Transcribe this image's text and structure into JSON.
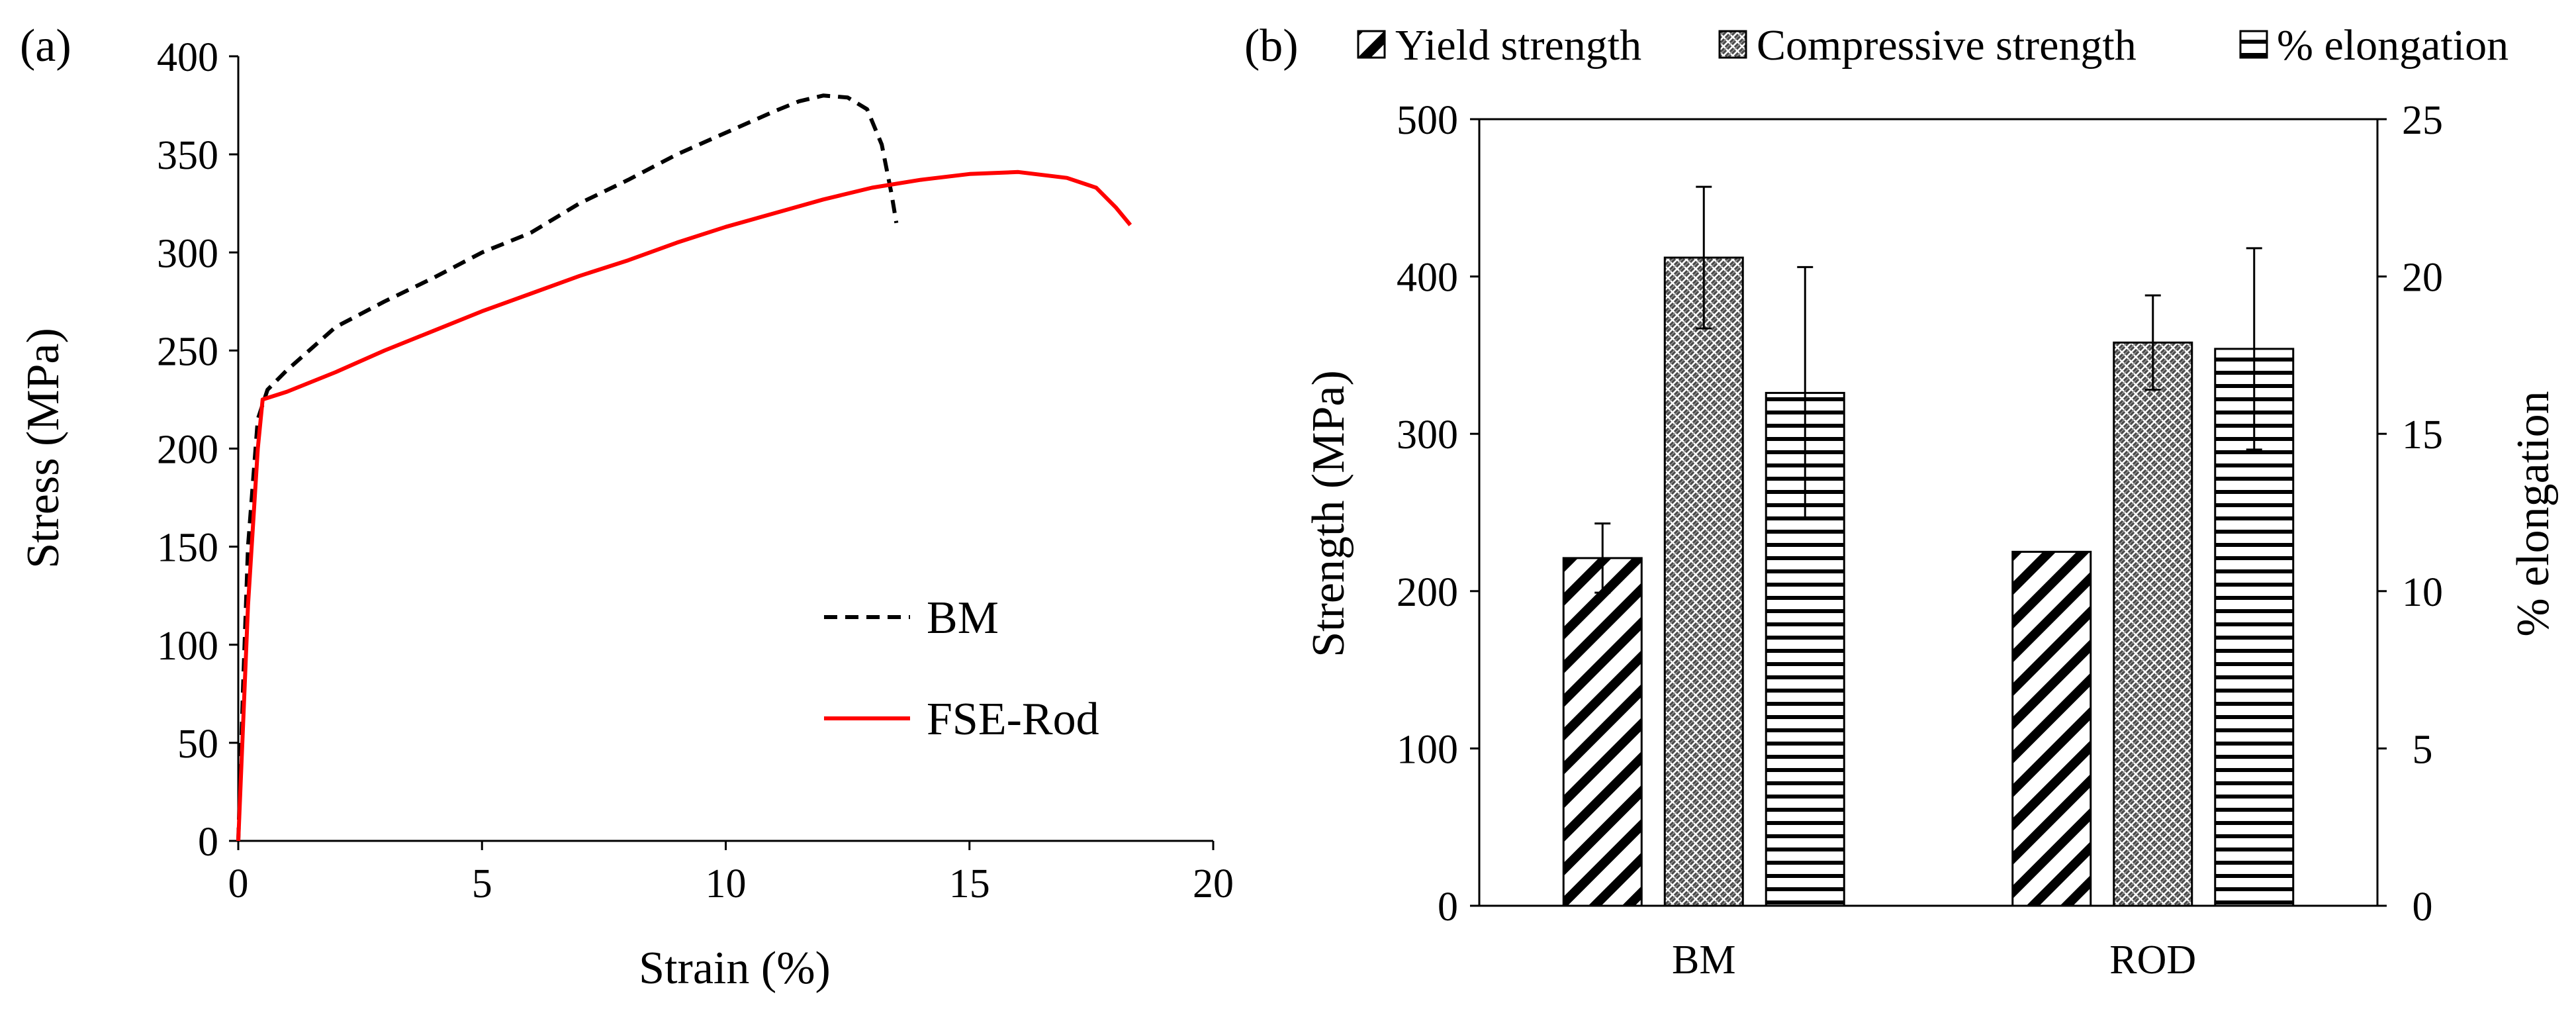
{
  "chart_data": [
    {
      "type": "line",
      "panel_label": "(a)",
      "xlabel": "Strain (%)",
      "ylabel": "Stress (MPa)",
      "xlim": [
        0,
        20
      ],
      "ylim": [
        0,
        400
      ],
      "xticks": [
        0,
        5,
        10,
        15,
        20
      ],
      "yticks": [
        0,
        50,
        100,
        150,
        200,
        250,
        300,
        350,
        400
      ],
      "grid": false,
      "legend_position": "lower-right",
      "series": [
        {
          "name": "BM",
          "color": "#000000",
          "dash": true,
          "points": [
            [
              0,
              0
            ],
            [
              0.1,
              80
            ],
            [
              0.2,
              150
            ],
            [
              0.4,
              215
            ],
            [
              0.6,
              230
            ],
            [
              1,
              240
            ],
            [
              2,
              262
            ],
            [
              3,
              275
            ],
            [
              4,
              287
            ],
            [
              5,
              300
            ],
            [
              6,
              310
            ],
            [
              7,
              325
            ],
            [
              8,
              337
            ],
            [
              9,
              350
            ],
            [
              10,
              361
            ],
            [
              11,
              372
            ],
            [
              11.5,
              377
            ],
            [
              12,
              380
            ],
            [
              12.5,
              379
            ],
            [
              12.9,
              373
            ],
            [
              13.2,
              355
            ],
            [
              13.4,
              330
            ],
            [
              13.5,
              315
            ]
          ]
        },
        {
          "name": "FSE-Rod",
          "color": "#ff0000",
          "dash": false,
          "points": [
            [
              0,
              0
            ],
            [
              0.2,
              120
            ],
            [
              0.4,
              200
            ],
            [
              0.5,
              225
            ],
            [
              1,
              229
            ],
            [
              2,
              239
            ],
            [
              3,
              250
            ],
            [
              4,
              260
            ],
            [
              5,
              270
            ],
            [
              6,
              279
            ],
            [
              7,
              288
            ],
            [
              8,
              296
            ],
            [
              9,
              305
            ],
            [
              10,
              313
            ],
            [
              11,
              320
            ],
            [
              12,
              327
            ],
            [
              13,
              333
            ],
            [
              14,
              337
            ],
            [
              15,
              340
            ],
            [
              16,
              341
            ],
            [
              17,
              338
            ],
            [
              17.6,
              333
            ],
            [
              18,
              323
            ],
            [
              18.3,
              314
            ]
          ]
        }
      ]
    },
    {
      "type": "bar",
      "panel_label": "(b)",
      "categories": [
        "BM",
        "ROD"
      ],
      "ylabel": "Strength (MPa)",
      "y2label": "% elongation",
      "ylim": [
        0,
        500
      ],
      "y2lim": [
        0,
        25
      ],
      "yticks": [
        0,
        100,
        200,
        300,
        400,
        500
      ],
      "y2ticks": [
        0,
        5,
        10,
        15,
        20,
        25
      ],
      "grid": false,
      "legend_position": "top",
      "series": [
        {
          "name": "Yield strength",
          "axis": "left",
          "pattern": "diagonal",
          "values": [
            221,
            225
          ],
          "errors": [
            22,
            0
          ]
        },
        {
          "name": "Compressive strength",
          "axis": "left",
          "pattern": "crosshatch",
          "values": [
            412,
            358
          ],
          "errors": [
            45,
            30
          ]
        },
        {
          "name": "% elongation",
          "axis": "right",
          "pattern": "horizontal",
          "values": [
            16.3,
            17.7
          ],
          "errors": [
            4.0,
            3.2
          ]
        }
      ]
    }
  ]
}
